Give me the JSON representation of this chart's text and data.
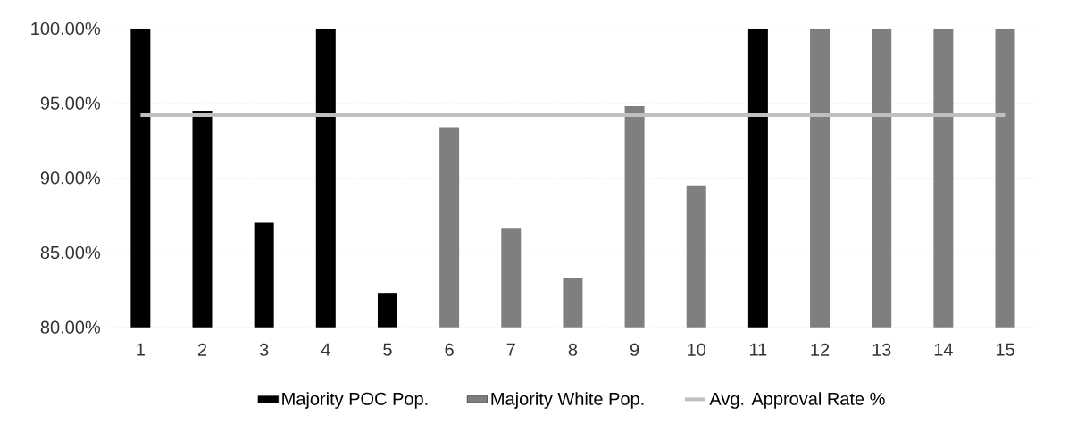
{
  "chart_data": {
    "type": "bar",
    "categories": [
      "1",
      "2",
      "3",
      "4",
      "5",
      "6",
      "7",
      "8",
      "9",
      "10",
      "11",
      "12",
      "13",
      "14",
      "15"
    ],
    "series": [
      {
        "name": "Majority POC Pop.",
        "color": "#000000",
        "values": [
          100,
          94.5,
          87.0,
          100,
          82.3,
          null,
          null,
          null,
          null,
          null,
          100,
          null,
          null,
          null,
          null
        ]
      },
      {
        "name": "Majority White Pop.",
        "color": "#7f7f7f",
        "values": [
          null,
          null,
          null,
          null,
          null,
          93.4,
          86.6,
          83.3,
          94.8,
          89.5,
          null,
          100,
          100,
          100,
          100
        ]
      },
      {
        "name": "Avg. Approval Rate %",
        "type": "line",
        "color": "#bfbfbf",
        "values": [
          94.2,
          94.2,
          94.2,
          94.2,
          94.2,
          94.2,
          94.2,
          94.2,
          94.2,
          94.2,
          94.2,
          94.2,
          94.2,
          94.2,
          94.2
        ]
      }
    ],
    "ylim": [
      80,
      100
    ],
    "yticks": [
      {
        "value": 80,
        "label": "80.00%"
      },
      {
        "value": 85,
        "label": "85.00%"
      },
      {
        "value": 90,
        "label": "90.00%"
      },
      {
        "value": 95,
        "label": "95.00%"
      },
      {
        "value": 100,
        "label": "100.00%"
      }
    ],
    "grid": "y",
    "legend": "bottom"
  }
}
